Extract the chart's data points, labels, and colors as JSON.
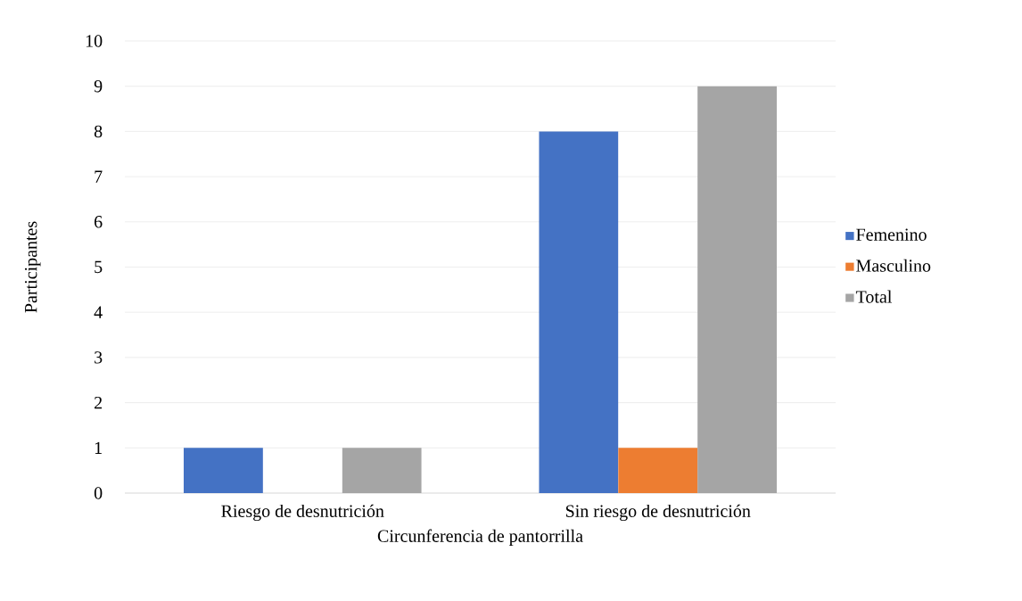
{
  "chart_data": {
    "type": "bar",
    "xlabel": "Circunferencia de pantorrilla",
    "ylabel": "Participantes",
    "categories": [
      "Riesgo de desnutrición",
      "Sin riesgo de desnutrición"
    ],
    "series": [
      {
        "name": "Femenino",
        "color": "#4472c4",
        "values": [
          1,
          8
        ]
      },
      {
        "name": "Masculino",
        "color": "#ed7d31",
        "values": [
          0,
          1
        ]
      },
      {
        "name": "Total",
        "color": "#a5a5a5",
        "values": [
          1,
          9
        ]
      }
    ],
    "ylim": [
      0,
      10
    ],
    "yticks": [
      0,
      1,
      2,
      3,
      4,
      5,
      6,
      7,
      8,
      9,
      10
    ],
    "grid": "y",
    "legend": "right"
  }
}
